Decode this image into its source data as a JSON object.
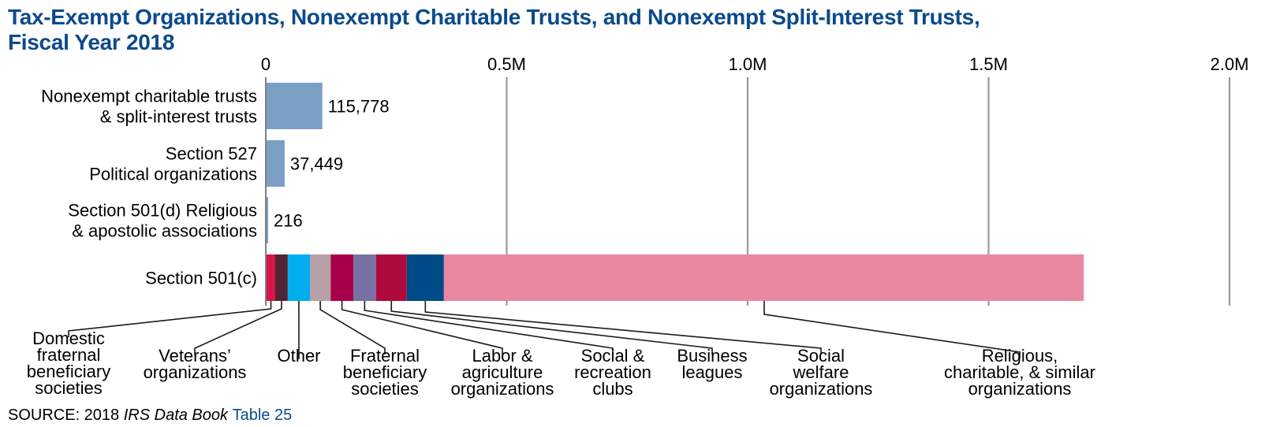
{
  "chart_data": {
    "type": "bar",
    "orientation": "horizontal",
    "title": "Tax-Exempt Organizations, Nonexempt Charitable Trusts, and Nonexempt Split-Interest Trusts, Fiscal Year 2018",
    "title_lines": [
      "Tax-Exempt Organizations, Nonexempt Charitable Trusts, and Nonexempt Split-Interest Trusts,",
      "Fiscal Year 2018"
    ],
    "xlabel": "",
    "ylabel": "",
    "xlim": [
      0,
      2000000
    ],
    "x_ticks": [
      0,
      500000,
      1000000,
      1500000,
      2000000
    ],
    "x_tick_labels": [
      "0",
      "0.5M",
      "1.0M",
      "1.5M",
      "2.0M"
    ],
    "x_tick_position": "top",
    "grid": true,
    "categories": [
      [
        "Nonexempt charitable trusts",
        "& split-interest trusts"
      ],
      [
        "Section 527",
        "Political organizations"
      ],
      [
        "Section 501(d) Religious",
        "& apostolic associations"
      ],
      [
        "Section 501(c)"
      ]
    ],
    "simple_bars": [
      {
        "category_index": 0,
        "value": 115778,
        "label": "115,778",
        "color": "#7b9fc5"
      },
      {
        "category_index": 1,
        "value": 37449,
        "label": "37,449",
        "color": "#7b9fc5"
      },
      {
        "category_index": 2,
        "value": 216,
        "label": "216",
        "color": "#7b9fc5"
      }
    ],
    "stacked_bar": {
      "category_index": 3,
      "note": "segment values estimated from bar lengths",
      "segments": [
        {
          "name": "Domestic fraternal beneficiary societies",
          "label_lines": [
            "Domestic",
            "fraternal",
            "beneficiary",
            "societies"
          ],
          "value": 18000,
          "color": "#d7164a"
        },
        {
          "name": "Veterans' organizations",
          "label_lines": [
            "Veterans’",
            "organizations"
          ],
          "value": 26000,
          "color": "#512534"
        },
        {
          "name": "Other",
          "label_lines": [
            "Other"
          ],
          "value": 46000,
          "color": "#00aeef"
        },
        {
          "name": "Fraternal beneficiary societies",
          "label_lines": [
            "Fraternal",
            "beneficiary",
            "societies"
          ],
          "value": 43000,
          "color": "#b8a0a8"
        },
        {
          "name": "Labor & agriculture organizations",
          "label_lines": [
            "Labor &",
            "agriculture",
            "organizations"
          ],
          "value": 47000,
          "color": "#a8004a"
        },
        {
          "name": "Social & recreation clubs",
          "label_lines": [
            "Social &",
            "recreation",
            "clubs"
          ],
          "value": 47000,
          "color": "#7872a4"
        },
        {
          "name": "Business leagues",
          "label_lines": [
            "Business",
            "leagues"
          ],
          "value": 64000,
          "color": "#ad0b3c"
        },
        {
          "name": "Social welfare organizations",
          "label_lines": [
            "Social",
            "welfare",
            "organizations"
          ],
          "value": 77000,
          "color": "#004b87"
        },
        {
          "name": "Religious, charitable, & similar organizations",
          "label_lines": [
            "Religious,",
            "charitable, & similar",
            "organizations"
          ],
          "value": 1328000,
          "color": "#ea88a2"
        }
      ]
    },
    "source": {
      "prefix": "SOURCE: 2018 ",
      "italic": "IRS Data Book",
      "link": "Table 25"
    },
    "colors": {
      "title": "#0b4a8b",
      "gridline": "#9a9a9a",
      "axis": "#808080",
      "simple_bar": "#7b9fc5"
    }
  }
}
